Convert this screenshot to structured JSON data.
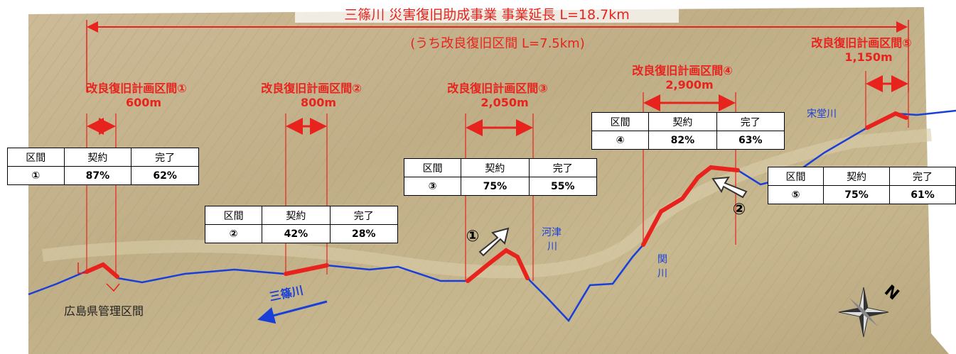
{
  "banner": {
    "title": "三篠川 災害復旧助成事業 事業延長 L=18.7km",
    "subtitle": "(うち改良復旧区間 L=7.5km)"
  },
  "sections": [
    {
      "name": "改良復旧計画区間①",
      "length": "600m",
      "table": {
        "headers": [
          "区間",
          "契約",
          "完了"
        ],
        "row": [
          "①",
          "87%",
          "62%"
        ]
      }
    },
    {
      "name": "改良復旧計画区間②",
      "length": "800m",
      "table": {
        "headers": [
          "区間",
          "契約",
          "完了"
        ],
        "row": [
          "②",
          "42%",
          "28%"
        ]
      }
    },
    {
      "name": "改良復旧計画区間③",
      "length": "2,050m",
      "table": {
        "headers": [
          "区間",
          "契約",
          "完了"
        ],
        "row": [
          "③",
          "75%",
          "55%"
        ]
      }
    },
    {
      "name": "改良復旧計画区間④",
      "length": "2,900m",
      "table": {
        "headers": [
          "区間",
          "契約",
          "完了"
        ],
        "row": [
          "④",
          "82%",
          "63%"
        ]
      }
    },
    {
      "name": "改良復旧計画区間⑤",
      "length": "1,150m",
      "table": {
        "headers": [
          "区間",
          "契約",
          "完了"
        ],
        "row": [
          "⑤",
          "75%",
          "61%"
        ]
      }
    }
  ],
  "rivers": {
    "main": "三篠川",
    "kawazu": "河津",
    "kawazu2": "川",
    "seki": "関",
    "seki2": "川",
    "soudou": "宋堂川"
  },
  "managed_area": "広島県管理区間",
  "viewpoints": [
    "①",
    "②"
  ],
  "compass": "N"
}
